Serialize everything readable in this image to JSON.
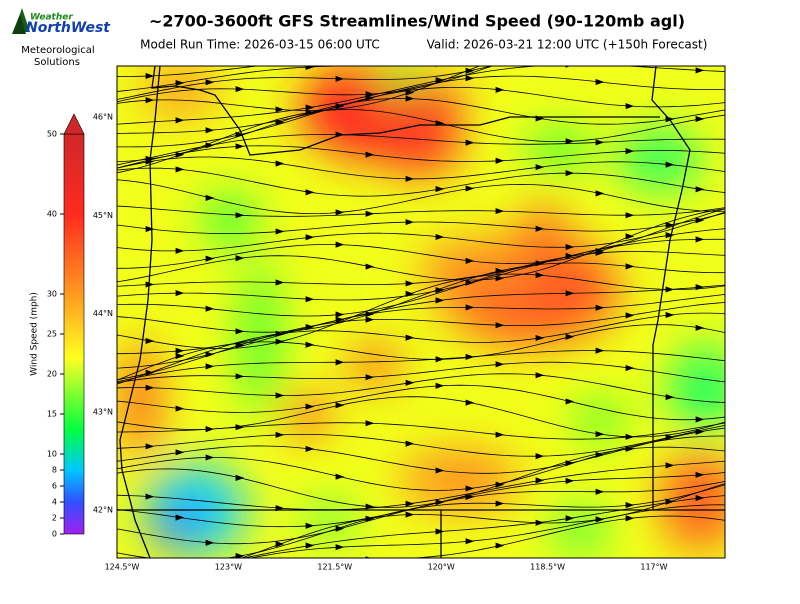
{
  "logo": {
    "brand_top": "Weather",
    "brand_main": "NorthWest",
    "line1": "Meteorological",
    "line2": "Solutions"
  },
  "header": {
    "title": "~2700-3600ft GFS Streamlines/Wind Speed (90-120mb agl)",
    "model_run": "Model Run Time: 2026-03-15 06:00 UTC",
    "valid": "Valid: 2026-03-21 12:00 UTC  (+150h Forecast)"
  },
  "colorbar": {
    "label": "Wind Speed (mph)",
    "ticks": [
      0,
      2,
      4,
      6,
      8,
      10,
      15,
      20,
      25,
      30,
      40,
      50
    ]
  },
  "map": {
    "latitudes": [
      {
        "value": 46,
        "label": "46°N"
      },
      {
        "value": 45,
        "label": "45°N"
      },
      {
        "value": 44,
        "label": "44°N"
      },
      {
        "value": 43,
        "label": "43°N"
      },
      {
        "value": 42,
        "label": "42°N"
      }
    ],
    "longitudes": [
      {
        "value": -124.5,
        "label": "124.5°W"
      },
      {
        "value": -123,
        "label": "123°W"
      },
      {
        "value": -121.5,
        "label": "121.5°W"
      },
      {
        "value": -120,
        "label": "120°W"
      },
      {
        "value": -118.5,
        "label": "118.5°W"
      },
      {
        "value": -117,
        "label": "117°W"
      }
    ]
  }
}
